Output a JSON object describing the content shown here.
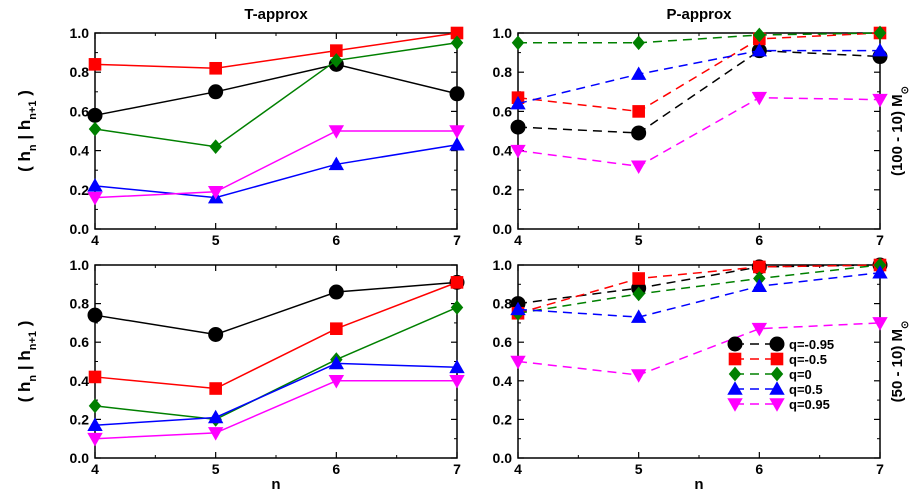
{
  "chart_data": [
    {
      "panel": "top-left",
      "type": "line",
      "title": "T-approx",
      "ylabel": "( h_n | h_n+1 )",
      "xlabel": "",
      "right_label": "",
      "line_style": "solid",
      "x": [
        4,
        5,
        6,
        7
      ],
      "xlim": [
        4,
        7
      ],
      "ylim": [
        0,
        1
      ],
      "yticks": [
        "0.0",
        "0.2",
        "0.4",
        "0.6",
        "0.8",
        "1.0"
      ],
      "xticks": [
        "4",
        "5",
        "6",
        "7"
      ],
      "series": [
        {
          "values": [
            0.58,
            0.7,
            0.84,
            0.69
          ],
          "color": "#000000",
          "marker": "circle"
        },
        {
          "values": [
            0.84,
            0.82,
            0.91,
            1.0
          ],
          "color": "#ff0000",
          "marker": "square"
        },
        {
          "values": [
            0.51,
            0.42,
            0.86,
            0.95
          ],
          "color": "#008000",
          "marker": "diamond"
        },
        {
          "values": [
            0.22,
            0.16,
            0.33,
            0.43
          ],
          "color": "#0000ff",
          "marker": "triangle-up"
        },
        {
          "values": [
            0.16,
            0.19,
            0.5,
            0.5
          ],
          "color": "#ff00ff",
          "marker": "triangle-down"
        }
      ]
    },
    {
      "panel": "top-right",
      "type": "line",
      "title": "P-approx",
      "ylabel": "",
      "xlabel": "",
      "right_label": "(100 - 10) M",
      "right_label_sub": "⊙",
      "line_style": "dashed",
      "x": [
        4,
        5,
        6,
        7
      ],
      "xlim": [
        4,
        7
      ],
      "ylim": [
        0,
        1
      ],
      "yticks": [
        "0.0",
        "0.2",
        "0.4",
        "0.6",
        "0.8",
        "1.0"
      ],
      "xticks": [
        "4",
        "5",
        "6",
        "7"
      ],
      "series": [
        {
          "values": [
            0.52,
            0.49,
            0.91,
            0.88
          ],
          "color": "#000000",
          "marker": "circle"
        },
        {
          "values": [
            0.67,
            0.6,
            0.97,
            1.0
          ],
          "color": "#ff0000",
          "marker": "square"
        },
        {
          "values": [
            0.95,
            0.95,
            0.99,
            1.0
          ],
          "color": "#008000",
          "marker": "diamond"
        },
        {
          "values": [
            0.64,
            0.79,
            0.91,
            0.91
          ],
          "color": "#0000ff",
          "marker": "triangle-up"
        },
        {
          "values": [
            0.4,
            0.32,
            0.67,
            0.66
          ],
          "color": "#ff00ff",
          "marker": "triangle-down"
        }
      ]
    },
    {
      "panel": "bottom-left",
      "type": "line",
      "title": "",
      "ylabel": "( h_n | h_n+1 )",
      "xlabel": "n",
      "right_label": "",
      "line_style": "solid",
      "x": [
        4,
        5,
        6,
        7
      ],
      "xlim": [
        4,
        7
      ],
      "ylim": [
        0,
        1
      ],
      "yticks": [
        "0.0",
        "0.2",
        "0.4",
        "0.6",
        "0.8",
        "1.0"
      ],
      "xticks": [
        "4",
        "5",
        "6",
        "7"
      ],
      "series": [
        {
          "values": [
            0.74,
            0.64,
            0.86,
            0.91
          ],
          "color": "#000000",
          "marker": "circle"
        },
        {
          "values": [
            0.42,
            0.36,
            0.67,
            0.91
          ],
          "color": "#ff0000",
          "marker": "square"
        },
        {
          "values": [
            0.27,
            0.2,
            0.51,
            0.78
          ],
          "color": "#008000",
          "marker": "diamond"
        },
        {
          "values": [
            0.17,
            0.21,
            0.49,
            0.47
          ],
          "color": "#0000ff",
          "marker": "triangle-up"
        },
        {
          "values": [
            0.1,
            0.13,
            0.4,
            0.4
          ],
          "color": "#ff00ff",
          "marker": "triangle-down"
        }
      ]
    },
    {
      "panel": "bottom-right",
      "type": "line",
      "title": "",
      "ylabel": "",
      "xlabel": "n",
      "right_label": "(50 - 10) M",
      "right_label_sub": "⊙",
      "line_style": "dashed",
      "legend_position": "bottom-right",
      "x": [
        4,
        5,
        6,
        7
      ],
      "xlim": [
        4,
        7
      ],
      "ylim": [
        0,
        1
      ],
      "yticks": [
        "0.0",
        "0.2",
        "0.4",
        "0.6",
        "0.8",
        "1.0"
      ],
      "xticks": [
        "4",
        "5",
        "6",
        "7"
      ],
      "series": [
        {
          "name": "q=-0.95",
          "values": [
            0.8,
            0.88,
            0.99,
            1.0
          ],
          "color": "#000000",
          "marker": "circle"
        },
        {
          "name": "q=-0.5",
          "values": [
            0.75,
            0.93,
            0.99,
            1.0
          ],
          "color": "#ff0000",
          "marker": "square"
        },
        {
          "name": "q=0",
          "values": [
            0.75,
            0.85,
            0.93,
            1.0
          ],
          "color": "#008000",
          "marker": "diamond"
        },
        {
          "name": "q=0.5",
          "values": [
            0.77,
            0.73,
            0.89,
            0.96
          ],
          "color": "#0000ff",
          "marker": "triangle-up"
        },
        {
          "name": "q=0.95",
          "values": [
            0.5,
            0.43,
            0.67,
            0.7
          ],
          "color": "#ff00ff",
          "marker": "triangle-down"
        }
      ]
    }
  ]
}
